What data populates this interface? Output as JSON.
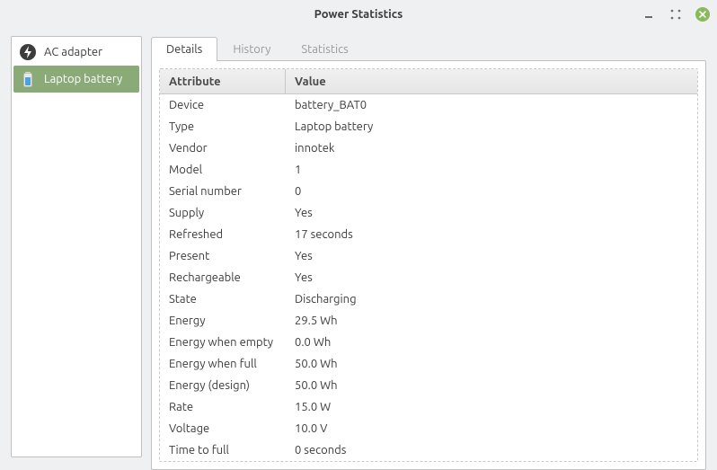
{
  "window": {
    "title": "Power Statistics"
  },
  "colors": {
    "accent": "#8aab77",
    "close": "#89b959",
    "border": "#c0c0c0",
    "bg": "#eff0f1",
    "text": "#3c3c3c",
    "muted": "#9a9a9a"
  },
  "sidebar": {
    "items": [
      {
        "icon": "ac-adapter-icon",
        "label": "AC adapter",
        "selected": false
      },
      {
        "icon": "battery-icon",
        "label": "Laptop battery",
        "selected": true
      }
    ]
  },
  "tabs": [
    {
      "label": "Details",
      "active": true
    },
    {
      "label": "History",
      "active": false
    },
    {
      "label": "Statistics",
      "active": false
    }
  ],
  "details": {
    "columns": {
      "attribute": "Attribute",
      "value": "Value"
    },
    "rows": [
      {
        "attr": "Device",
        "val": "battery_BAT0"
      },
      {
        "attr": "Type",
        "val": "Laptop battery"
      },
      {
        "attr": "Vendor",
        "val": "innotek"
      },
      {
        "attr": "Model",
        "val": "1"
      },
      {
        "attr": "Serial number",
        "val": "0"
      },
      {
        "attr": "Supply",
        "val": "Yes"
      },
      {
        "attr": "Refreshed",
        "val": "17 seconds"
      },
      {
        "attr": "Present",
        "val": "Yes"
      },
      {
        "attr": "Rechargeable",
        "val": "Yes"
      },
      {
        "attr": "State",
        "val": "Discharging"
      },
      {
        "attr": "Energy",
        "val": "29.5 Wh"
      },
      {
        "attr": "Energy when empty",
        "val": "0.0 Wh"
      },
      {
        "attr": "Energy when full",
        "val": "50.0 Wh"
      },
      {
        "attr": "Energy (design)",
        "val": "50.0 Wh"
      },
      {
        "attr": "Rate",
        "val": "15.0 W"
      },
      {
        "attr": "Voltage",
        "val": "10.0 V"
      },
      {
        "attr": "Time to full",
        "val": "0 seconds"
      }
    ]
  }
}
